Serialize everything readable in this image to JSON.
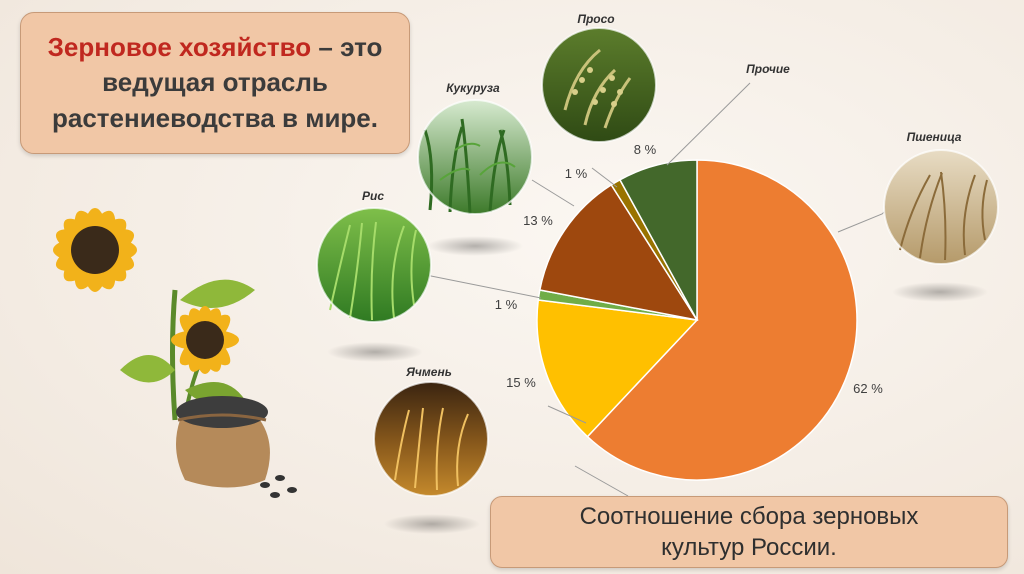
{
  "title": {
    "highlight": "Зерновое хозяйство",
    "rest_line1": " – это",
    "line2": "ведущая отрасль",
    "line3": "растениеводства в мире."
  },
  "caption": {
    "line1": "Соотношение сбора зерновых",
    "line2": "культур России."
  },
  "chart_data": {
    "type": "pie",
    "start_angle_deg": 0,
    "direction": "clockwise",
    "slices": [
      {
        "name": "Пшеница",
        "value": 62,
        "label": "62 %",
        "color": "#ed7d31"
      },
      {
        "name": "Ячмень",
        "value": 15,
        "label": "15 %",
        "color": "#ffc000"
      },
      {
        "name": "Рис",
        "value": 1,
        "label": "1 %",
        "color": "#70ad47"
      },
      {
        "name": "Кукуруза",
        "value": 13,
        "label": "13 %",
        "color": "#9e480e"
      },
      {
        "name": "Просо",
        "value": 1,
        "label": "1 %",
        "color": "#997300"
      },
      {
        "name": "Прочие",
        "value": 8,
        "label": "8 %",
        "color": "#43682b"
      }
    ]
  },
  "photos": [
    {
      "name": "Просо",
      "icon": "millet-photo"
    },
    {
      "name": "Прочие",
      "icon": "none"
    },
    {
      "name": "Кукуруза",
      "icon": "corn-field-photo"
    },
    {
      "name": "Пшеница",
      "icon": "wheat-field-photo"
    },
    {
      "name": "Рис",
      "icon": "rice-field-photo"
    },
    {
      "name": "Ячмень",
      "icon": "barley-photo"
    }
  ],
  "illustration": {
    "icon": "sunflower-with-seed-sack"
  }
}
